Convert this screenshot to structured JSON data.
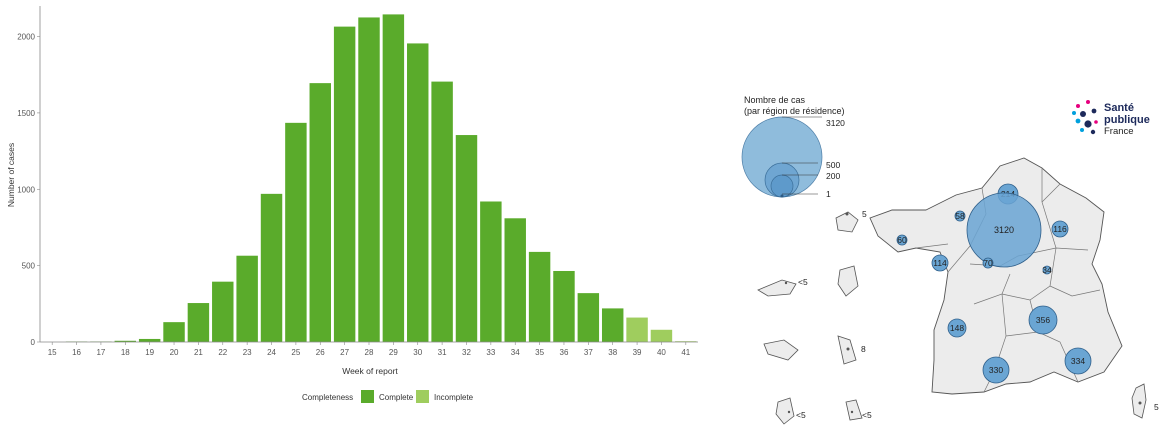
{
  "chart_data": [
    {
      "type": "bar",
      "title": "",
      "xlabel": "Week of report",
      "ylabel": "Number of cases",
      "ylim": [
        0,
        2200
      ],
      "y_ticks": [
        "0",
        "500",
        "1000",
        "1500",
        "2000"
      ],
      "x_ticks": [
        "15",
        "16",
        "17",
        "18",
        "19",
        "20",
        "21",
        "22",
        "23",
        "24",
        "25",
        "26",
        "27",
        "28",
        "29",
        "30",
        "31",
        "32",
        "33",
        "34",
        "35",
        "36",
        "37",
        "38",
        "39",
        "40",
        "41"
      ],
      "categories": [
        "15",
        "16",
        "17",
        "18",
        "19",
        "20",
        "21",
        "22",
        "23",
        "24",
        "25",
        "26",
        "27",
        "28",
        "29",
        "30",
        "31",
        "32",
        "33",
        "34",
        "35",
        "36",
        "37",
        "38",
        "39",
        "40",
        "41"
      ],
      "values": [
        0,
        3,
        3,
        8,
        20,
        130,
        255,
        395,
        565,
        970,
        1435,
        1695,
        2065,
        2125,
        2145,
        1955,
        1705,
        1355,
        920,
        810,
        590,
        465,
        320,
        220,
        160,
        80,
        5
      ],
      "completeness": [
        "Complete",
        "Complete",
        "Complete",
        "Complete",
        "Complete",
        "Complete",
        "Complete",
        "Complete",
        "Complete",
        "Complete",
        "Complete",
        "Complete",
        "Complete",
        "Complete",
        "Complete",
        "Complete",
        "Complete",
        "Complete",
        "Complete",
        "Complete",
        "Complete",
        "Complete",
        "Complete",
        "Complete",
        "Incomplete",
        "Incomplete",
        "Incomplete"
      ],
      "legend": {
        "title": "Completeness",
        "placement": "bottom",
        "items": [
          {
            "label": "Complete",
            "color": "#5aab2b"
          },
          {
            "label": "Incomplete",
            "color": "#9fcd5e"
          }
        ]
      },
      "grid": false
    },
    {
      "type": "bubble-map",
      "legend": {
        "title_line1": "Nombre de cas",
        "title_line2": "(par région de résidence)",
        "sizes": [
          {
            "label": "3120",
            "value": 3120
          },
          {
            "label": "500",
            "value": 500
          },
          {
            "label": "200",
            "value": 200
          },
          {
            "label": "1",
            "value": 1
          }
        ]
      },
      "bubble_color": "#5e9fcf",
      "regions": [
        {
          "label": "214",
          "value": 214
        },
        {
          "label": "58",
          "value": 58
        },
        {
          "label": "3120",
          "value": 3120
        },
        {
          "label": "116",
          "value": 116
        },
        {
          "label": "60",
          "value": 60
        },
        {
          "label": "114",
          "value": 114
        },
        {
          "label": "70",
          "value": 70
        },
        {
          "label": "34",
          "value": 34
        },
        {
          "label": "148",
          "value": 148
        },
        {
          "label": "356",
          "value": 356
        },
        {
          "label": "330",
          "value": 330
        },
        {
          "label": "334",
          "value": 334
        }
      ],
      "overseas": [
        {
          "label": "5"
        },
        {
          "label": "<5"
        },
        {
          "label": "8"
        },
        {
          "label": "<5"
        },
        {
          "label": "<5"
        },
        {
          "label": "5"
        }
      ]
    }
  ],
  "logo": {
    "line1": "Santé",
    "line2": "publique",
    "line3": "France"
  }
}
